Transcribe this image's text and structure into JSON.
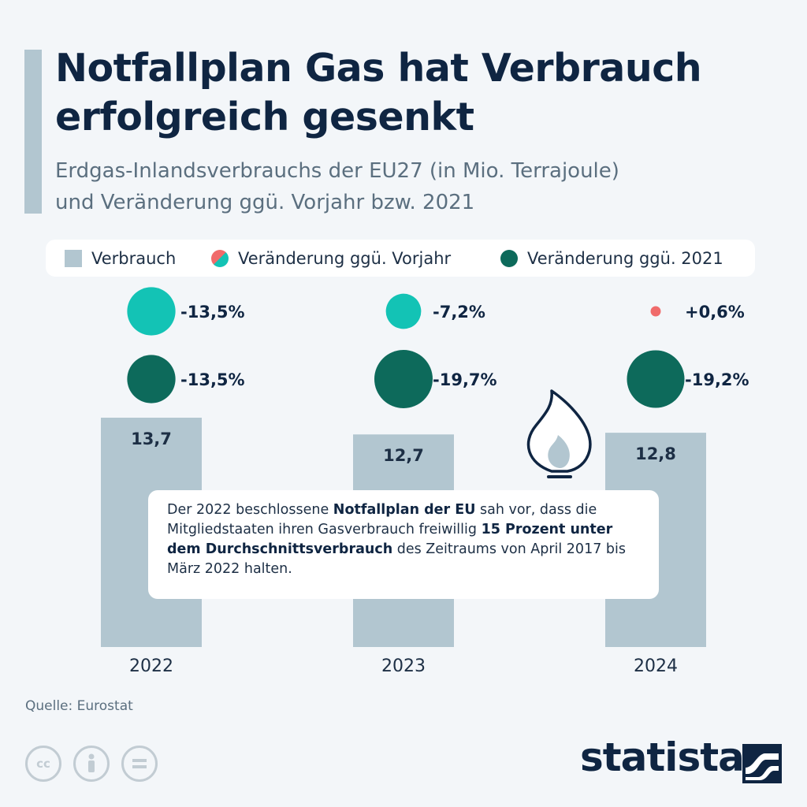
{
  "title_line1": "Notfallplan Gas hat Verbrauch",
  "title_line2": "erfolgreich gesenkt",
  "subtitle_line1": "Erdgas-Inlandsverbrauchs der EU27 (in Mio. Terrajoule)",
  "subtitle_line2": "und Veränderung ggü. Vorjahr bzw. 2021",
  "legend": {
    "verbrauch": "Verbrauch",
    "vorjahr": "Veränderung ggü. Vorjahr",
    "v2021": "Veränderung ggü. 2021"
  },
  "colors": {
    "bar": "#b2c6d0",
    "vorjahr_negative": "#13c3b5",
    "vorjahr_positive": "#f06b6b",
    "v2021": "#0d6a5b"
  },
  "chart_data": {
    "type": "bar",
    "categories": [
      "2022",
      "2023",
      "2024"
    ],
    "series": [
      {
        "name": "Verbrauch",
        "values": [
          13.7,
          12.7,
          12.8
        ],
        "labels": [
          "13,7",
          "12,7",
          "12,8"
        ]
      },
      {
        "name": "Veränderung ggü. Vorjahr",
        "values": [
          -13.5,
          -7.2,
          0.6
        ],
        "labels": [
          "-13,5%",
          "-7,2%",
          "+0,6%"
        ]
      },
      {
        "name": "Veränderung ggü. 2021",
        "values": [
          -13.5,
          -19.7,
          -19.2
        ],
        "labels": [
          "-13,5%",
          "-19,7%",
          "-19,2%"
        ]
      }
    ]
  },
  "note": {
    "part1": "Der 2022 beschlossene ",
    "bold1": "Notfallplan der EU",
    "part2": " sah vor, dass die Mitgliedstaaten ihren Gasverbrauch freiwillig ",
    "bold2": "15 Prozent unter dem Durchschnittsverbrauch",
    "part3": " des Zeitraums von April 2017 bis März 2022 halten."
  },
  "source": "Quelle: Eurostat",
  "license_icons": [
    "cc-icon",
    "person-icon",
    "equals-icon"
  ],
  "brand": "statista"
}
